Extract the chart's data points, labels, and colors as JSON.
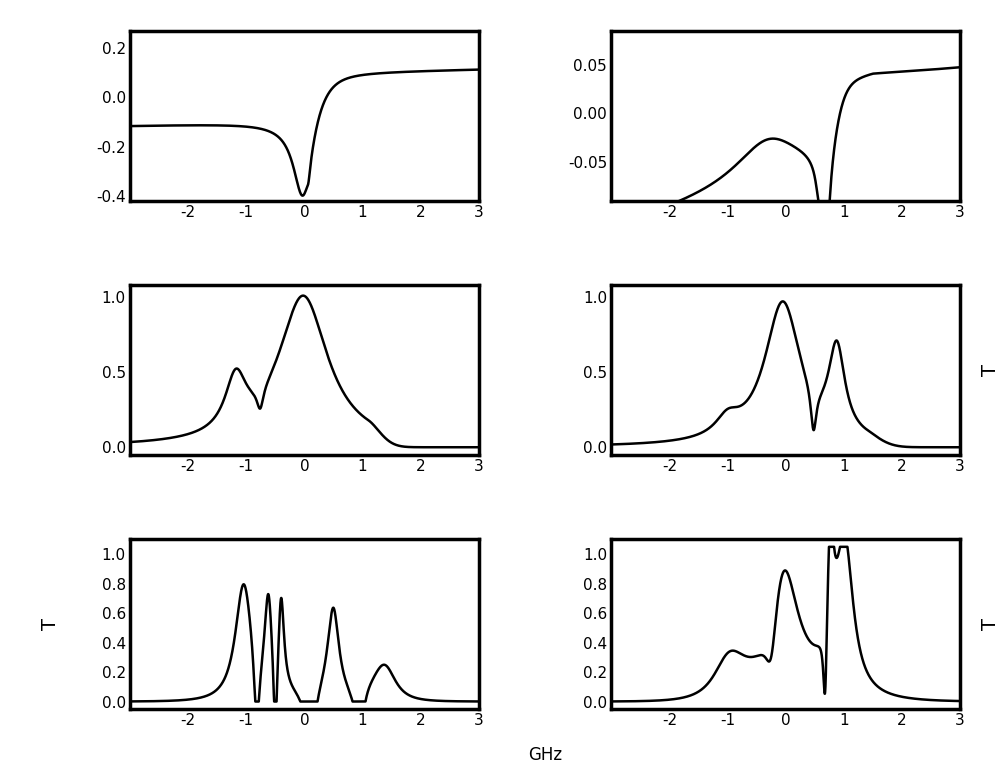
{
  "xlim": [
    -3,
    3
  ],
  "xticks": [
    -2,
    -1,
    0,
    1,
    2,
    3
  ],
  "xtick_labels": [
    "-2",
    "-1",
    "0",
    "1",
    "2",
    "3"
  ],
  "xlabel": "GHz",
  "line_color": "#000000",
  "line_width": 1.8,
  "spine_linewidth": 2.5,
  "background_color": "#ffffff",
  "fontsize_ticks": 11,
  "fontsize_xlabel": 12,
  "plot_configs": [
    {
      "ylim": [
        -0.42,
        0.27
      ],
      "yticks": [
        0.2,
        0.0,
        -0.2,
        -0.4
      ],
      "ytick_labels": [
        "0.2",
        "0.0",
        "-0.2",
        "-0.4"
      ],
      "T_label": null
    },
    {
      "ylim": [
        -0.09,
        0.085
      ],
      "yticks": [
        0.05,
        0.0,
        -0.05
      ],
      "ytick_labels": [
        "0.05",
        "0.00",
        "-0.05"
      ],
      "T_label": null
    },
    {
      "ylim": [
        -0.05,
        1.08
      ],
      "yticks": [
        1.0,
        0.5,
        0.0
      ],
      "ytick_labels": [
        "1.0",
        "0.5",
        "0.0"
      ],
      "T_label": null
    },
    {
      "ylim": [
        -0.05,
        1.08
      ],
      "yticks": [
        1.0,
        0.5,
        0.0
      ],
      "ytick_labels": [
        "1.0",
        "0.5",
        "0.0"
      ],
      "T_label": "right"
    },
    {
      "ylim": [
        -0.05,
        1.1
      ],
      "yticks": [
        1.0,
        0.8,
        0.6,
        0.4,
        0.2,
        0.0
      ],
      "ytick_labels": [
        "1.0",
        "0.8",
        "0.6",
        "0.4",
        "0.2",
        "0.0"
      ],
      "T_label": "left"
    },
    {
      "ylim": [
        -0.05,
        1.1
      ],
      "yticks": [
        1.0,
        0.8,
        0.6,
        0.4,
        0.2,
        0.0
      ],
      "ytick_labels": [
        "1.0",
        "0.8",
        "0.6",
        "0.4",
        "0.2",
        "0.0"
      ],
      "T_label": "right"
    }
  ]
}
